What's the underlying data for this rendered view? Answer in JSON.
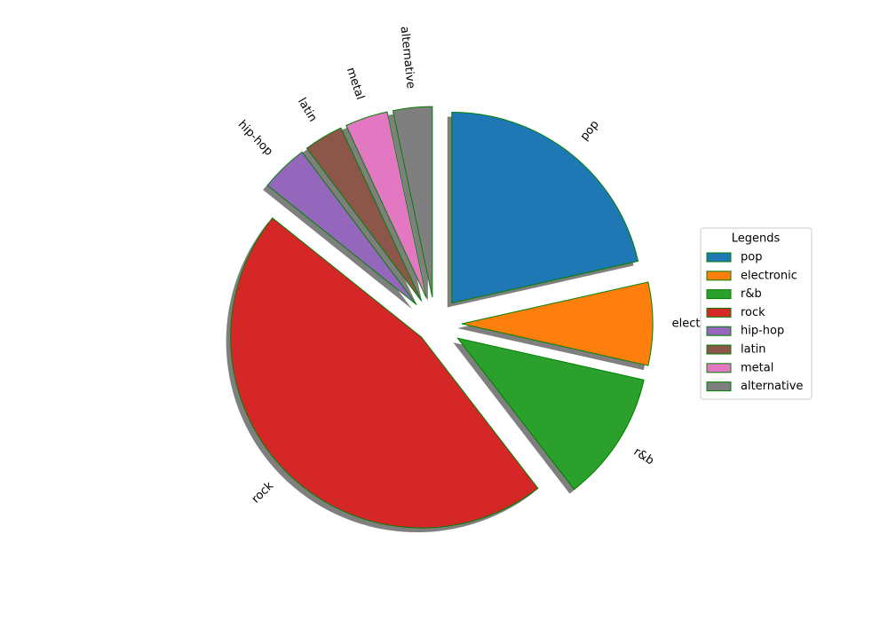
{
  "chart_data": {
    "type": "pie",
    "categories": [
      "pop",
      "electronic",
      "r&b",
      "rock",
      "hip-hop",
      "latin",
      "metal",
      "alternative"
    ],
    "values": [
      21.4,
      7,
      11,
      46,
      4,
      3.3,
      3.6,
      3.3
    ],
    "colors": [
      "#1f77b4",
      "#ff7f0e",
      "#2ca02c",
      "#d62728",
      "#9467bd",
      "#8c564b",
      "#e377c2",
      "#7f7f7f"
    ],
    "edgecolor": "green",
    "shadow": true,
    "startangle": 90,
    "counterclock": false,
    "legend_title": "Legends",
    "legend": "right"
  }
}
